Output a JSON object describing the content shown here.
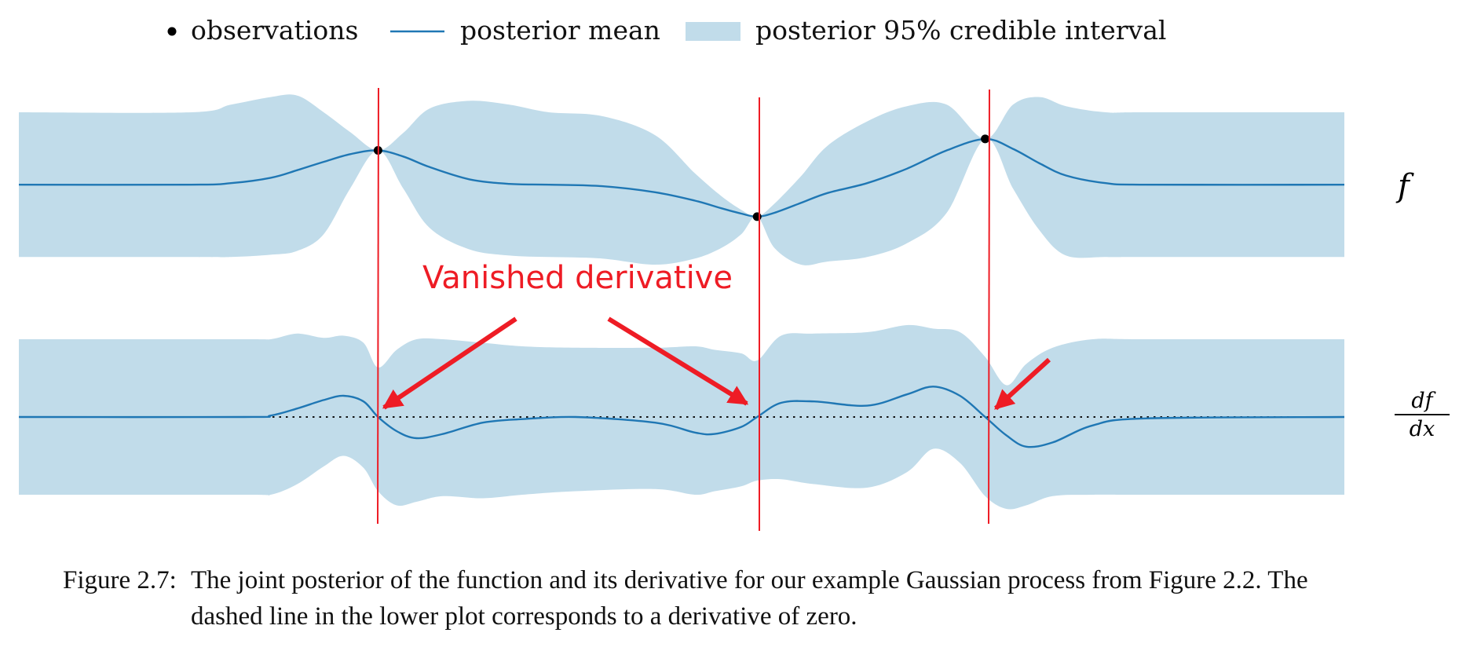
{
  "legend": {
    "observations": "observations",
    "posterior_mean": "posterior mean",
    "credible_interval": "posterior 95% credible interval"
  },
  "labels": {
    "f": "f",
    "deriv_num": "df",
    "deriv_den": "dx"
  },
  "annotation": {
    "text": "Vanished derivative",
    "color": "#ee1c25"
  },
  "caption": {
    "label": "Figure 2.7:",
    "line1": "The joint posterior of the function and its derivative for our example Gaussian process from Figure 2.2. The",
    "line2": "dashed line in the lower plot corresponds to a derivative of zero."
  },
  "colors": {
    "mean": "#1f77b4",
    "band": "#c1dcea",
    "observation": "#000000",
    "marker_line": "#ee1c25"
  },
  "chart_data": [
    {
      "type": "line",
      "title": "",
      "ylabel": "f",
      "xlim": [
        0,
        1
      ],
      "ylim": [
        -1.5,
        1.5
      ],
      "observations": {
        "x": [
          0.271,
          0.557,
          0.729
        ],
        "y": [
          0.5,
          -0.37,
          0.65
        ]
      },
      "mean": {
        "x": [
          0.0,
          0.13,
          0.16,
          0.19,
          0.21,
          0.23,
          0.25,
          0.271,
          0.29,
          0.31,
          0.34,
          0.37,
          0.4,
          0.44,
          0.48,
          0.51,
          0.53,
          0.545,
          0.557,
          0.57,
          0.59,
          0.61,
          0.64,
          0.67,
          0.7,
          0.729,
          0.75,
          0.77,
          0.79,
          0.82,
          0.85,
          1.0
        ],
        "y": [
          0.05,
          0.05,
          0.07,
          0.14,
          0.24,
          0.35,
          0.45,
          0.5,
          0.42,
          0.28,
          0.12,
          0.06,
          0.05,
          0.03,
          -0.05,
          -0.16,
          -0.26,
          -0.33,
          -0.37,
          -0.32,
          -0.19,
          -0.06,
          0.07,
          0.26,
          0.5,
          0.65,
          0.52,
          0.33,
          0.17,
          0.07,
          0.05,
          0.05
        ]
      },
      "band_upper": [
        1.0,
        1.0,
        1.1,
        1.2,
        1.22,
        1.0,
        0.74,
        0.5,
        0.73,
        1.05,
        1.15,
        1.1,
        1.0,
        0.95,
        0.7,
        0.2,
        -0.1,
        -0.28,
        -0.37,
        -0.2,
        0.16,
        0.56,
        0.88,
        1.08,
        1.1,
        0.65,
        1.1,
        1.2,
        1.08,
        1.0,
        1.0,
        1.0
      ],
      "band_lower": [
        -0.9,
        -0.9,
        -0.9,
        -0.87,
        -0.82,
        -0.6,
        0.0,
        0.5,
        0.0,
        -0.52,
        -0.8,
        -0.88,
        -0.9,
        -0.92,
        -1.0,
        -0.92,
        -0.78,
        -0.6,
        -0.37,
        -0.78,
        -1.0,
        -0.96,
        -0.9,
        -0.72,
        -0.32,
        0.65,
        0.0,
        -0.55,
        -0.88,
        -0.9,
        -0.9,
        -0.9
      ]
    },
    {
      "type": "line",
      "title": "",
      "ylabel": "df/dx",
      "xlim": [
        0,
        1
      ],
      "ylim": [
        -1.5,
        1.5
      ],
      "zero_line": 0,
      "mean": {
        "x": [
          0.0,
          0.17,
          0.19,
          0.21,
          0.23,
          0.245,
          0.26,
          0.271,
          0.285,
          0.3,
          0.32,
          0.35,
          0.38,
          0.42,
          0.48,
          0.51,
          0.525,
          0.545,
          0.557,
          0.575,
          0.6,
          0.64,
          0.67,
          0.69,
          0.71,
          0.729,
          0.745,
          0.76,
          0.78,
          0.81,
          0.85,
          1.0
        ],
        "y": [
          0.0,
          0.0,
          0.02,
          0.12,
          0.24,
          0.3,
          0.22,
          0.0,
          -0.2,
          -0.3,
          -0.24,
          -0.08,
          -0.03,
          0.0,
          -0.08,
          -0.22,
          -0.24,
          -0.14,
          0.0,
          0.2,
          0.22,
          0.16,
          0.32,
          0.43,
          0.3,
          0.0,
          -0.26,
          -0.42,
          -0.36,
          -0.12,
          -0.02,
          0.0
        ]
      },
      "band_upper": [
        1.1,
        1.1,
        1.1,
        1.18,
        1.12,
        1.15,
        1.05,
        0.7,
        0.95,
        1.1,
        1.1,
        1.05,
        1.0,
        0.98,
        0.98,
        1.0,
        0.95,
        0.9,
        0.8,
        1.15,
        1.18,
        1.2,
        1.3,
        1.25,
        1.2,
        0.85,
        0.45,
        0.75,
        0.98,
        1.1,
        1.1,
        1.1
      ],
      "band_lower": [
        -1.1,
        -1.1,
        -1.1,
        -0.95,
        -0.7,
        -0.55,
        -0.72,
        -1.05,
        -1.25,
        -1.2,
        -1.12,
        -1.15,
        -1.1,
        -1.05,
        -1.02,
        -1.1,
        -1.05,
        -0.98,
        -0.9,
        -0.88,
        -0.95,
        -1.0,
        -0.78,
        -0.45,
        -0.65,
        -1.12,
        -1.3,
        -1.25,
        -1.12,
        -1.1,
        -1.1,
        -1.1
      ]
    }
  ]
}
